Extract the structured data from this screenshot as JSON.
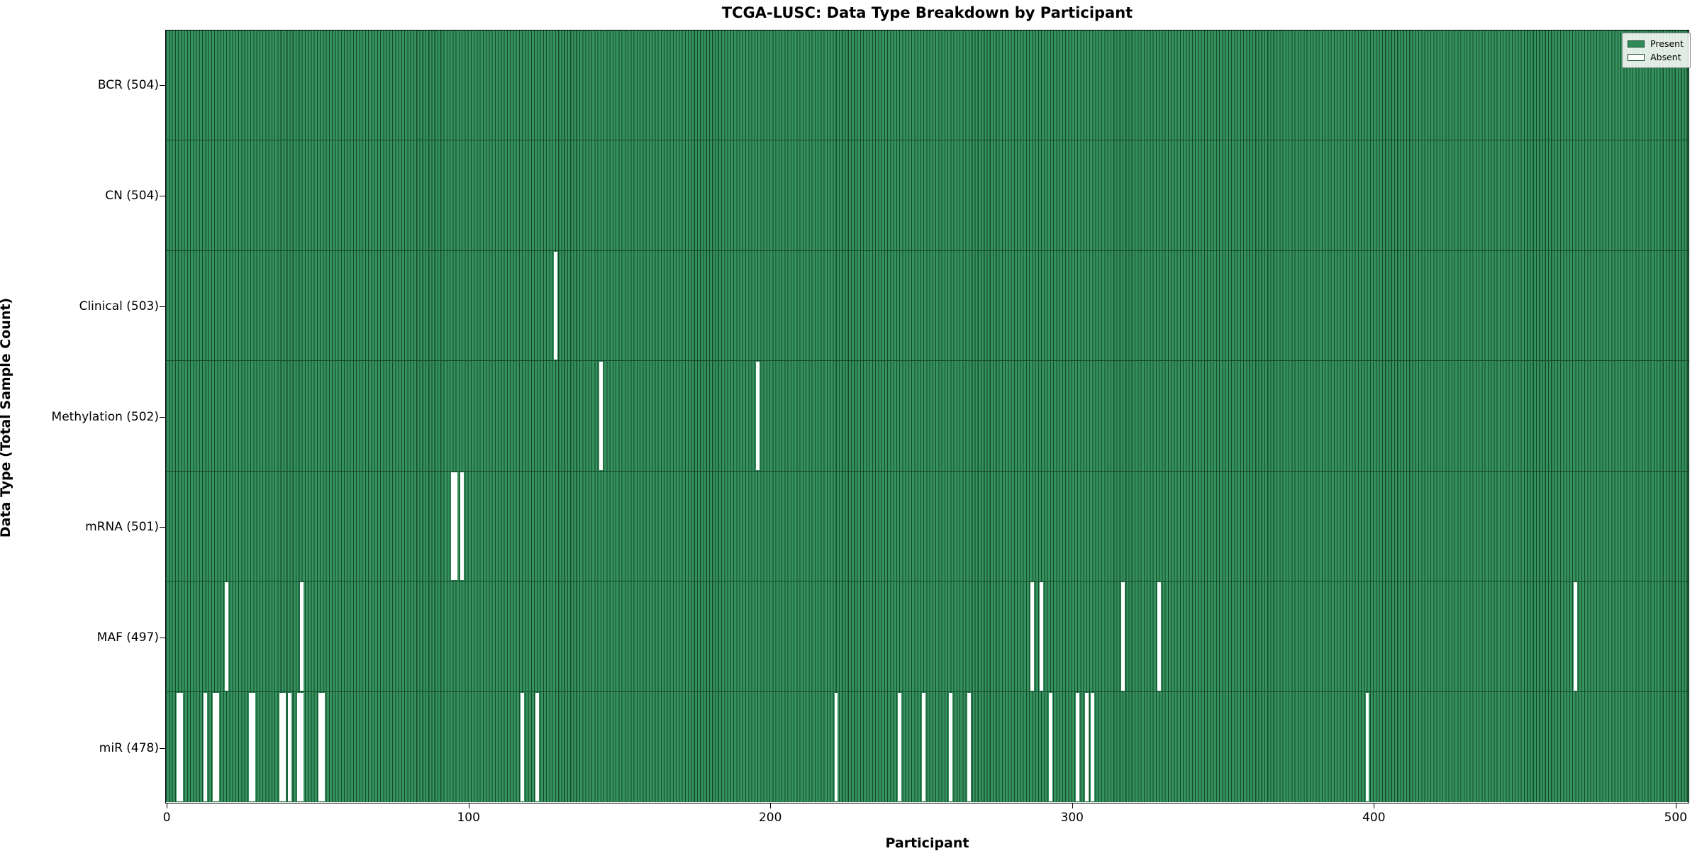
{
  "chart_data": {
    "type": "heatmap",
    "title": "TCGA-LUSC: Data Type Breakdown by Participant",
    "xlabel": "Participant",
    "ylabel": "Data Type (Total Sample Count)",
    "x_ticks": [
      0,
      100,
      200,
      300,
      400,
      500
    ],
    "x_range": [
      0,
      505
    ],
    "n_participants": 504,
    "legend": [
      {
        "label": "Present",
        "color_key": "present_fill"
      },
      {
        "label": "Absent",
        "color_key": "absent"
      }
    ],
    "legend_position": "upper right",
    "grid": false,
    "colors": {
      "present_fill": "#35915d",
      "bar_edge": "#14482c",
      "absent": "#ffffff",
      "legend_present": "#2e8b57",
      "spine": "#000000"
    },
    "rows": [
      {
        "label": "BCR (504)",
        "data_type": "BCR",
        "total_count": 504,
        "absent_participants": []
      },
      {
        "label": "CN (504)",
        "data_type": "CN",
        "total_count": 504,
        "absent_participants": []
      },
      {
        "label": "Clinical (503)",
        "data_type": "Clinical",
        "total_count": 503,
        "absent_participants": [
          129
        ]
      },
      {
        "label": "Methylation (502)",
        "data_type": "Methylation",
        "total_count": 502,
        "absent_participants": [
          144,
          196
        ]
      },
      {
        "label": "mRNA (501)",
        "data_type": "mRNA",
        "total_count": 501,
        "absent_participants": [
          95,
          96,
          98
        ]
      },
      {
        "label": "MAF (497)",
        "data_type": "MAF",
        "total_count": 497,
        "absent_participants": [
          20,
          45,
          287,
          290,
          317,
          329,
          467
        ]
      },
      {
        "label": "miR (478)",
        "data_type": "miR",
        "total_count": 478,
        "absent_participants": [
          4,
          5,
          13,
          16,
          17,
          28,
          29,
          38,
          39,
          41,
          44,
          45,
          51,
          52,
          118,
          123,
          222,
          243,
          251,
          260,
          266,
          293,
          302,
          305,
          307,
          398
        ]
      }
    ]
  }
}
